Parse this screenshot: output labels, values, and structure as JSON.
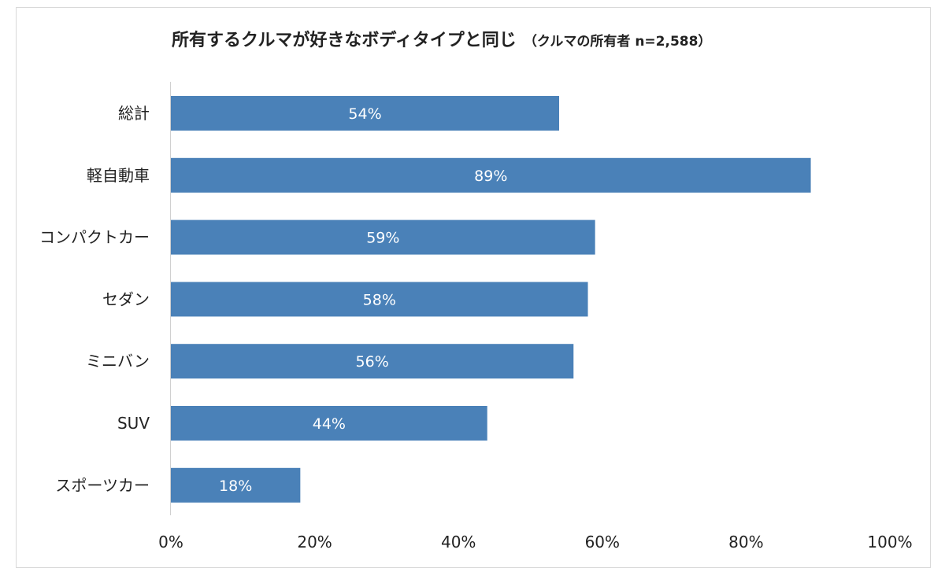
{
  "chart_data": {
    "type": "bar",
    "orientation": "horizontal",
    "title": "所有するクルマが好きなボディタイプと同じ",
    "subtitle": "（クルマの所有者 n=2,588）",
    "categories": [
      "総計",
      "軽自動車",
      "コンパクトカー",
      "セダン",
      "ミニバン",
      "SUV",
      "スポーツカー"
    ],
    "values": [
      54,
      89,
      59,
      58,
      56,
      44,
      18
    ],
    "data_labels": [
      "54%",
      "89%",
      "59%",
      "58%",
      "56%",
      "44%",
      "18%"
    ],
    "xlim": [
      0,
      100
    ],
    "x_ticks": [
      "0%",
      "20%",
      "40%",
      "60%",
      "80%",
      "100%"
    ],
    "grid": false,
    "bar_color": "#4A81B8",
    "axis_color": "#d0d0d0"
  }
}
